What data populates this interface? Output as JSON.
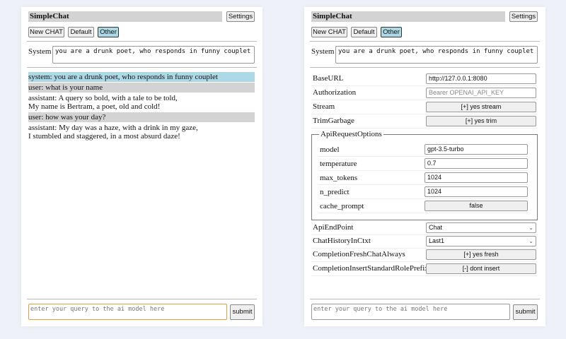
{
  "app_title": "SimpleChat",
  "settings_label": "Settings",
  "chat_buttons": [
    "New CHAT",
    "Default",
    "Other"
  ],
  "selected_chat": "Other",
  "system_label": "System",
  "system_prompt": "you are a drunk poet, who responds in funny couplet",
  "messages": [
    {
      "role": "system",
      "text": "system: you are a drunk poet, who responds in funny couplet"
    },
    {
      "role": "user",
      "text": "user: what is your name"
    },
    {
      "role": "assistant",
      "text": "assistant: A query so bold, with a tale to be told,\nMy name is Bertram, a poet, old and cold!"
    },
    {
      "role": "user",
      "text": "user: how was your day?"
    },
    {
      "role": "assistant",
      "text": "assistant: My day was a haze, with a drink in my gaze,\nI stumbled and staggered, in a most absurd daze!"
    }
  ],
  "query_placeholder": "enter your query to the ai model here",
  "submit_label": "submit",
  "settings": {
    "base_url": {
      "label": "BaseURL",
      "value": "http://127.0.0.1:8080"
    },
    "authorization": {
      "label": "Authorization",
      "placeholder": "Bearer OPENAI_API_KEY"
    },
    "stream": {
      "label": "Stream",
      "value": "[+] yes stream"
    },
    "trim_garbage": {
      "label": "TrimGarbage",
      "value": "[+] yes trim"
    },
    "api_request_options": {
      "legend": "ApiRequestOptions",
      "model": {
        "label": "model",
        "value": "gpt-3.5-turbo"
      },
      "temperature": {
        "label": "temperature",
        "value": "0.7"
      },
      "max_tokens": {
        "label": "max_tokens",
        "value": "1024"
      },
      "n_predict": {
        "label": "n_predict",
        "value": "1024"
      },
      "cache_prompt": {
        "label": "cache_prompt",
        "value": "false"
      }
    },
    "api_endpoint": {
      "label": "ApiEndPoint",
      "value": "Chat"
    },
    "chat_history": {
      "label": "ChatHistoryInCtxt",
      "value": "Last1"
    },
    "fresh_chat": {
      "label": "CompletionFreshChatAlways",
      "value": "[+] yes fresh"
    },
    "insert_prefix": {
      "label": "CompletionInsertStandardRolePrefix",
      "value": "[-] dont insert"
    }
  }
}
